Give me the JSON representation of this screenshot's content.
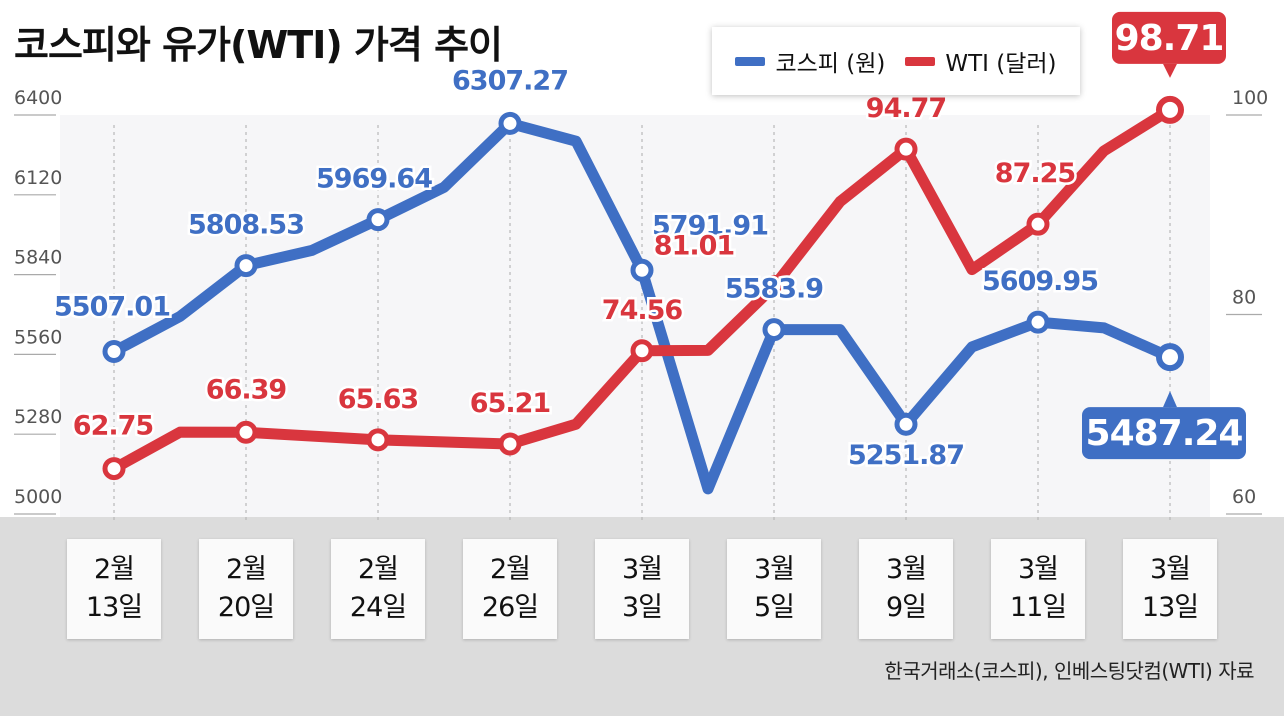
{
  "title": "코스피와 유가(WTI) 가격 추이",
  "legend": [
    {
      "label": "코스피 (원)",
      "color": "#3f6fc4"
    },
    {
      "label": "WTI (달러)",
      "color": "#d9363e"
    }
  ],
  "source": "한국거래소(코스피), 인베스팅닷컴(WTI) 자료",
  "colors": {
    "kospi": "#3f6fc4",
    "wti": "#d9363e",
    "band": "#dcdcdc"
  },
  "chart_data": {
    "type": "line",
    "date_labels": [
      {
        "month": "2월",
        "day": "13일"
      },
      {
        "month": "2월",
        "day": "20일"
      },
      {
        "month": "2월",
        "day": "24일"
      },
      {
        "month": "2월",
        "day": "26일"
      },
      {
        "month": "3월",
        "day": "3일"
      },
      {
        "month": "3월",
        "day": "5일"
      },
      {
        "month": "3월",
        "day": "9일"
      },
      {
        "month": "3월",
        "day": "11일"
      },
      {
        "month": "3월",
        "day": "13일"
      }
    ],
    "y_left": {
      "ticks": [
        "6400",
        "6120",
        "5840",
        "5560",
        "5280",
        "5000"
      ],
      "range": [
        5000,
        6400
      ]
    },
    "y_right": {
      "ticks": [
        "100",
        "80",
        "60"
      ],
      "range": [
        60,
        100
      ]
    },
    "series": [
      {
        "name": "코스피 (원)",
        "axis": "left",
        "points": [
          {
            "x": 0,
            "y": 5507.01,
            "label": "5507.01"
          },
          {
            "x": 0.5,
            "y": 5630
          },
          {
            "x": 1,
            "y": 5808.53,
            "label": "5808.53"
          },
          {
            "x": 1.5,
            "y": 5862
          },
          {
            "x": 2,
            "y": 5969.64,
            "label": "5969.64"
          },
          {
            "x": 2.5,
            "y": 6083
          },
          {
            "x": 3,
            "y": 6307.27,
            "label": "6307.27"
          },
          {
            "x": 3.5,
            "y": 6245
          },
          {
            "x": 4,
            "y": 5791.91,
            "label": "5791.91"
          },
          {
            "x": 4.5,
            "y": 5025
          },
          {
            "x": 5,
            "y": 5583.9,
            "label": "5583.9"
          },
          {
            "x": 5.5,
            "y": 5583.9
          },
          {
            "x": 6,
            "y": 5251.87,
            "label": "5251.87"
          },
          {
            "x": 6.5,
            "y": 5523
          },
          {
            "x": 7,
            "y": 5609.95,
            "label": "5609.95"
          },
          {
            "x": 7.5,
            "y": 5590
          },
          {
            "x": 8,
            "y": 5487.24,
            "label": "5487.24"
          }
        ]
      },
      {
        "name": "WTI (달러)",
        "axis": "right",
        "points": [
          {
            "x": 0,
            "y": 62.75,
            "label": "62.75"
          },
          {
            "x": 0.5,
            "y": 66.4
          },
          {
            "x": 1,
            "y": 66.39,
            "label": "66.39"
          },
          {
            "x": 2,
            "y": 65.63,
            "label": "65.63"
          },
          {
            "x": 3,
            "y": 65.21,
            "label": "65.21"
          },
          {
            "x": 3.5,
            "y": 67.2
          },
          {
            "x": 4,
            "y": 74.56,
            "label": "74.56"
          },
          {
            "x": 4.5,
            "y": 74.6
          },
          {
            "x": 5,
            "y": 81.01,
            "label": "81.01"
          },
          {
            "x": 5.5,
            "y": 89.5
          },
          {
            "x": 6,
            "y": 94.77,
            "label": "94.77"
          },
          {
            "x": 6.5,
            "y": 82.7
          },
          {
            "x": 7,
            "y": 87.25,
            "label": "87.25"
          },
          {
            "x": 7.5,
            "y": 94.6
          },
          {
            "x": 8,
            "y": 98.71,
            "label": "98.71"
          }
        ]
      }
    ]
  }
}
